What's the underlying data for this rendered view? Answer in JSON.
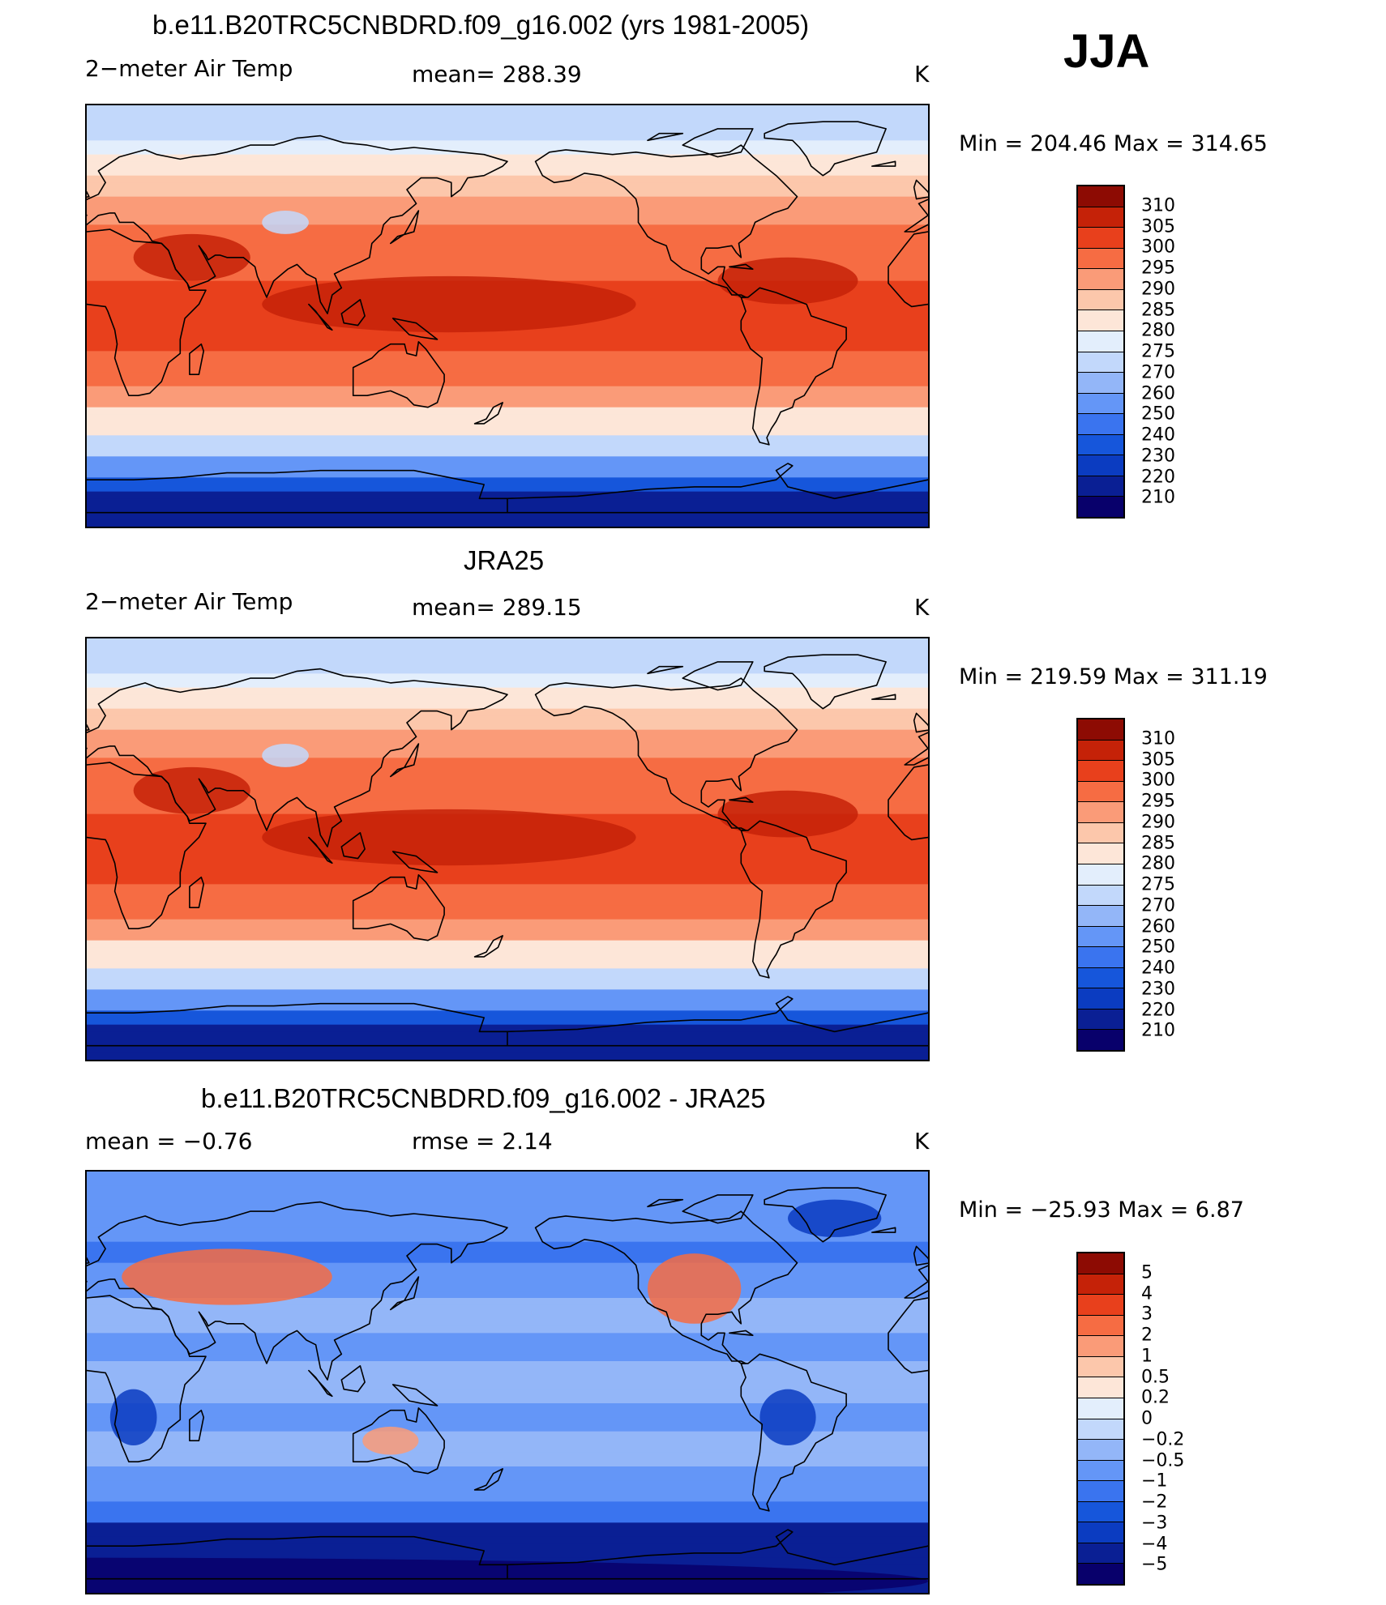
{
  "season": "JJA",
  "panels": [
    {
      "title": "b.e11.B20TRC5CNBDRD.f09_g16.002 (yrs 1981-2005)",
      "variable": "2−meter Air Temp",
      "stat_left": "",
      "stat_mid": "mean=  288.39",
      "units": "K",
      "minmax": "Min  =  204.46  Max  =  314.65",
      "colorbar_labels": [
        "210",
        "220",
        "230",
        "240",
        "250",
        "260",
        "270",
        "275",
        "280",
        "285",
        "290",
        "295",
        "300",
        "305",
        "310"
      ],
      "colorbar_colors": [
        "#08006b",
        "#0a1f94",
        "#0b3cc1",
        "#1656db",
        "#3a74ef",
        "#6496f7",
        "#93b6f8",
        "#c2d8fb",
        "#e3eefc",
        "#fde6d8",
        "#fcc7ab",
        "#fa9b78",
        "#f66c43",
        "#e8401c",
        "#c52208",
        "#8d0b03"
      ],
      "field": "temp"
    },
    {
      "title": "JRA25",
      "variable": "2−meter Air Temp",
      "stat_left": "",
      "stat_mid": "mean=  289.15",
      "units": "K",
      "minmax": "Min  =  219.59  Max  =  311.19",
      "colorbar_labels": [
        "210",
        "220",
        "230",
        "240",
        "250",
        "260",
        "270",
        "275",
        "280",
        "285",
        "290",
        "295",
        "300",
        "305",
        "310"
      ],
      "colorbar_colors": [
        "#08006b",
        "#0a1f94",
        "#0b3cc1",
        "#1656db",
        "#3a74ef",
        "#6496f7",
        "#93b6f8",
        "#c2d8fb",
        "#e3eefc",
        "#fde6d8",
        "#fcc7ab",
        "#fa9b78",
        "#f66c43",
        "#e8401c",
        "#c52208",
        "#8d0b03"
      ],
      "field": "temp"
    },
    {
      "title": "b.e11.B20TRC5CNBDRD.f09_g16.002 - JRA25",
      "variable": "",
      "stat_left": "mean  =    −0.76",
      "stat_mid": "rmse  =     2.14",
      "units": "K",
      "minmax": "Min  =  −25.93  Max  =     6.87",
      "colorbar_labels": [
        "−5",
        "−4",
        "−3",
        "−2",
        "−1",
        "−0.5",
        "−0.2",
        "0",
        "0.2",
        "0.5",
        "1",
        "2",
        "3",
        "4",
        "5"
      ],
      "colorbar_colors": [
        "#08006b",
        "#0a1f94",
        "#0b3cc1",
        "#1656db",
        "#3a74ef",
        "#6496f7",
        "#93b6f8",
        "#c2d8fb",
        "#e3eefc",
        "#fde6d8",
        "#fcc7ab",
        "#fa9b78",
        "#f66c43",
        "#e8401c",
        "#c52208",
        "#8d0b03"
      ],
      "field": "diff"
    }
  ]
}
